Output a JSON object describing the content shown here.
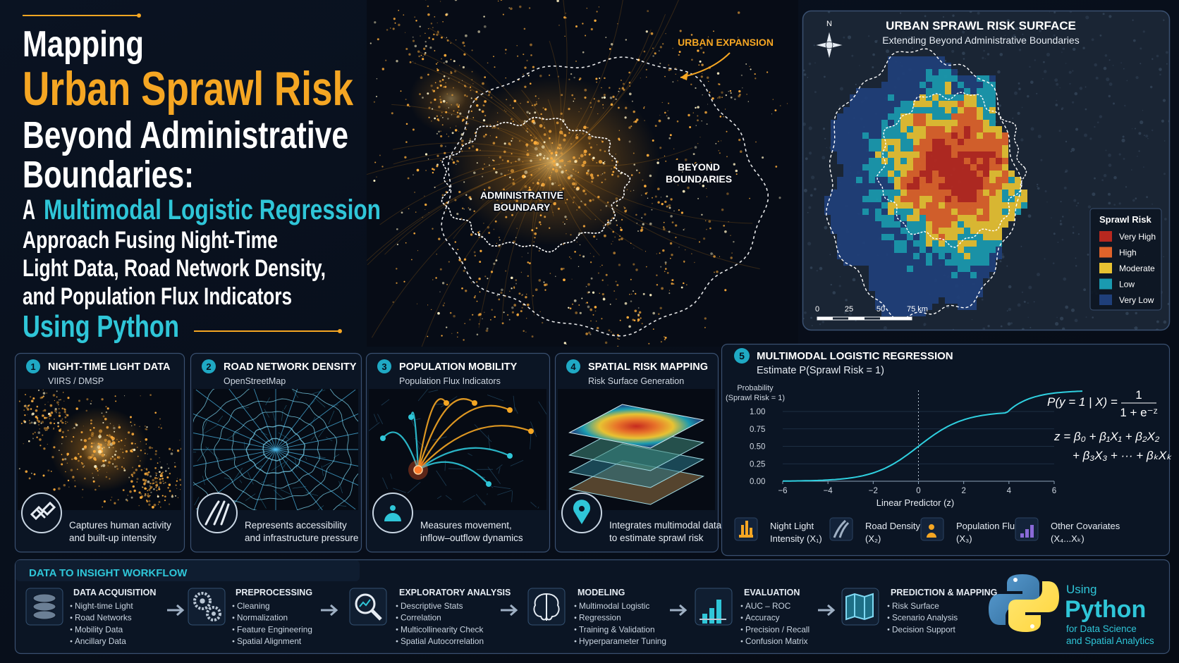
{
  "header": {
    "line1": "Mapping",
    "line2": "Urban Sprawl Risk",
    "line3": "Beyond Administrative",
    "line4": "Boundaries:",
    "line5_prefix": "A",
    "line5_highlight": "Multimodal Logistic Regression",
    "line6": "Approach Fusing Night-Time",
    "line7": "Light Data, Road Network Density,",
    "line8": "and Population Flux Indicators",
    "line9": "Using Python"
  },
  "map": {
    "urban_expansion": "URBAN EXPANSION",
    "administrative_boundary": [
      "ADMINISTRATIVE",
      "BOUNDARY"
    ],
    "beyond_boundaries": [
      "BEYOND",
      "BOUNDARIES"
    ]
  },
  "risk_panel": {
    "title": "URBAN SPRAWL RISK SURFACE",
    "subtitle": "Extending Beyond Administrative Boundaries",
    "north": "N",
    "legend_title": "Sprawl Risk",
    "legend": [
      {
        "label": "Very High",
        "color": "#b8281f"
      },
      {
        "label": "High",
        "color": "#e0632a"
      },
      {
        "label": "Moderate",
        "color": "#e8c232"
      },
      {
        "label": "Low",
        "color": "#1a9ab0"
      },
      {
        "label": "Very Low",
        "color": "#1f3f7a"
      }
    ],
    "scale": [
      "0",
      "25",
      "50",
      "75 km"
    ]
  },
  "cards": [
    {
      "number": "1",
      "title": "NIGHT-TIME LIGHT DATA",
      "subtitle": "VIIRS / DMSP",
      "description": [
        "Captures human activity",
        "and built-up intensity"
      ]
    },
    {
      "number": "2",
      "title": "ROAD NETWORK DENSITY",
      "subtitle": "OpenStreetMap",
      "description": [
        "Represents accessibility",
        "and infrastructure pressure"
      ]
    },
    {
      "number": "3",
      "title": "POPULATION MOBILITY",
      "subtitle": "Population Flux Indicators",
      "description": [
        "Measures movement,",
        "inflow–outflow dynamics"
      ]
    },
    {
      "number": "4",
      "title": "SPATIAL RISK MAPPING",
      "subtitle": "Risk Surface Generation",
      "description": [
        "Integrates multimodal data",
        "to estimate sprawl risk"
      ]
    }
  ],
  "regression": {
    "number": "5",
    "title": "MULTIMODAL LOGISTIC REGRESSION",
    "subtitle": "Estimate P(Sprawl Risk = 1)",
    "y_label": [
      "Probability",
      "(Sprawl Risk = 1)"
    ],
    "yticks": [
      "1.00",
      "0.75",
      "0.50",
      "0.25",
      "0.00"
    ],
    "xticks": [
      "−6",
      "−4",
      "−2",
      "0",
      "2",
      "4",
      "6"
    ],
    "x_label": "Linear Predictor (z)",
    "formula": {
      "lhs": "P(y = 1 | X) =",
      "numerator": "1",
      "denominator": "1 + e⁻ᶻ",
      "z_line1": "z = β₀ + β₁X₁ + β₂X₂",
      "z_line2": "+ β₃X₃ + ··· + βₖXₖ"
    },
    "covariates": [
      [
        "Night Light",
        "Intensity (X₁)"
      ],
      [
        "Road Density",
        "(X₂)"
      ],
      [
        "Population Flux",
        "(X₃)"
      ],
      [
        "Other Covariates",
        "(X₄...Xₖ)"
      ]
    ]
  },
  "workflow": {
    "title": "DATA TO INSIGHT WORKFLOW",
    "steps": [
      {
        "title": "DATA ACQUISITION",
        "items": [
          "Night-time Light",
          "Road Networks",
          "Mobility Data",
          "Ancillary Data"
        ]
      },
      {
        "title": "PREPROCESSING",
        "items": [
          "Cleaning",
          "Normalization",
          "Feature Engineering",
          "Spatial Alignment"
        ]
      },
      {
        "title": "EXPLORATORY ANALYSIS",
        "items": [
          "Descriptive Stats",
          "Correlation",
          "Multicollinearity Check",
          "Spatial Autocorrelation"
        ]
      },
      {
        "title": "MODELING",
        "items": [
          "Multimodal Logistic",
          "Regression",
          "Training & Validation",
          "Hyperparameter Tuning"
        ]
      },
      {
        "title": "EVALUATION",
        "items": [
          "AUC – ROC",
          "Accuracy",
          "Precision / Recall",
          "Confusion Matrix"
        ]
      },
      {
        "title": "PREDICTION & MAPPING",
        "items": [
          "Risk Surface",
          "Scenario Analysis",
          "Decision Support"
        ]
      }
    ]
  },
  "python": {
    "using": "Using",
    "name": "Python",
    "tagline": [
      "for Data Science",
      "and Spatial Analytics"
    ]
  }
}
